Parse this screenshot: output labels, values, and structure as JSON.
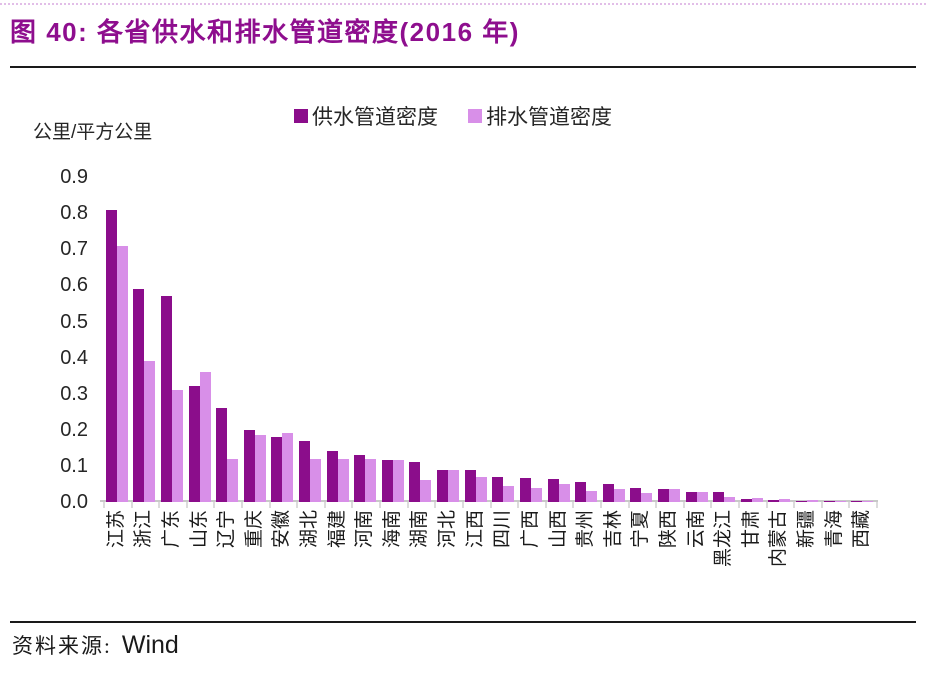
{
  "title": "图 40:  各省供水和排水管道密度(2016 年)",
  "unit_label": "公里/平方公里",
  "legend": [
    {
      "label": "供水管道密度",
      "color": "#8b0d8b"
    },
    {
      "label": "排水管道密度",
      "color": "#d88fe8"
    }
  ],
  "source": {
    "prefix": "资料来源:",
    "name": "Wind"
  },
  "colors": {
    "title": "#8e0e8e",
    "supply_bar": "#8b0d8b",
    "drain_bar": "#d88fe8",
    "axis": "#c8c8c8",
    "tick": "#dcdcdc",
    "text": "#262626"
  },
  "chart_data": {
    "type": "bar",
    "title": "各省供水和排水管道密度(2016 年)",
    "xlabel": "",
    "ylabel": "公里/平方公里",
    "ylim": [
      0,
      0.9
    ],
    "ytick_step": 0.1,
    "yticks": [
      "0.0",
      "0.1",
      "0.2",
      "0.3",
      "0.4",
      "0.5",
      "0.6",
      "0.7",
      "0.8",
      "0.9"
    ],
    "grid": false,
    "legend_position": "top-center",
    "categories": [
      "江苏",
      "浙江",
      "广东",
      "山东",
      "辽宁",
      "重庆",
      "安徽",
      "湖北",
      "福建",
      "河南",
      "海南",
      "湖南",
      "河北",
      "江西",
      "四川",
      "广西",
      "山西",
      "贵州",
      "吉林",
      "宁夏",
      "陕西",
      "云南",
      "黑龙江",
      "甘肃",
      "内蒙古",
      "新疆",
      "青海",
      "西藏"
    ],
    "series": [
      {
        "name": "供水管道密度",
        "color": "#8b0d8b",
        "values": [
          0.81,
          0.59,
          0.57,
          0.32,
          0.26,
          0.2,
          0.18,
          0.17,
          0.14,
          0.13,
          0.115,
          0.11,
          0.09,
          0.09,
          0.07,
          0.066,
          0.065,
          0.055,
          0.05,
          0.04,
          0.036,
          0.028,
          0.027,
          0.008,
          0.005,
          0.004,
          0.003,
          0.002
        ]
      },
      {
        "name": "排水管道密度",
        "color": "#d88fe8",
        "values": [
          0.71,
          0.39,
          0.31,
          0.36,
          0.12,
          0.185,
          0.19,
          0.12,
          0.12,
          0.12,
          0.115,
          0.06,
          0.09,
          0.07,
          0.045,
          0.04,
          0.05,
          0.03,
          0.035,
          0.025,
          0.036,
          0.028,
          0.015,
          0.01,
          0.008,
          0.006,
          0.004,
          0.003
        ]
      }
    ]
  }
}
